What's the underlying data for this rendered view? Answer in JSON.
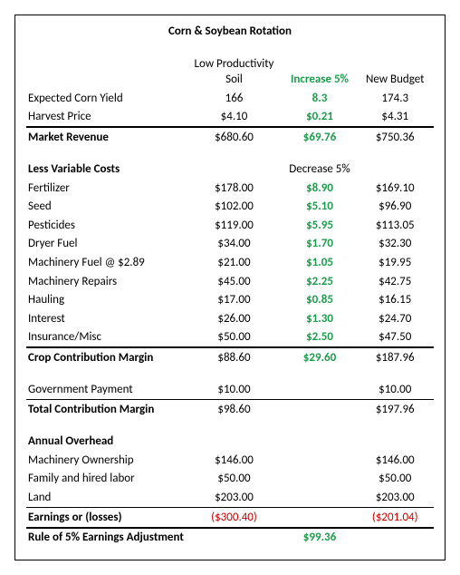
{
  "title": "Corn & Soybean Rotation",
  "headers": {
    "colA": "Low Productivity Soil",
    "colB": "Increase 5%",
    "colC": "New Budget"
  },
  "topRows": [
    {
      "label": "Expected Corn Yield",
      "a": "166",
      "b": "8.3",
      "c": "174.3"
    },
    {
      "label": "Harvest Price",
      "a": "$4.10",
      "b": "$0.21",
      "c": "$4.31"
    }
  ],
  "marketRevenue": {
    "label": "Market Revenue",
    "a": "$680.60",
    "b": "$69.76",
    "c": "$750.36"
  },
  "costsHeader": {
    "label": "Less Variable Costs",
    "b": "Decrease 5%"
  },
  "costRows": [
    {
      "label": "Fertilizer",
      "a": "$178.00",
      "b": "$8.90",
      "c": "$169.10"
    },
    {
      "label": "Seed",
      "a": "$102.00",
      "b": "$5.10",
      "c": "$96.90"
    },
    {
      "label": "Pesticides",
      "a": "$119.00",
      "b": "$5.95",
      "c": "$113.05"
    },
    {
      "label": "Dryer Fuel",
      "a": "$34.00",
      "b": "$1.70",
      "c": "$32.30"
    },
    {
      "label": "Machinery Fuel @ $2.89",
      "a": "$21.00",
      "b": "$1.05",
      "c": "$19.95"
    },
    {
      "label": "Machinery Repairs",
      "a": "$45.00",
      "b": "$2.25",
      "c": "$42.75"
    },
    {
      "label": "Hauling",
      "a": "$17.00",
      "b": "$0.85",
      "c": "$16.15"
    },
    {
      "label": "Interest",
      "a": "$26.00",
      "b": "$1.30",
      "c": "$24.70"
    },
    {
      "label": "Insurance/Misc",
      "a": "$50.00",
      "b": "$2.50",
      "c": "$47.50"
    }
  ],
  "cropContribution": {
    "label": "Crop Contribution Margin",
    "a": "$88.60",
    "b": "$29.60",
    "c": "$187.96"
  },
  "govPayment": {
    "label": "Government Payment",
    "a": "$10.00",
    "b": "",
    "c": "$10.00"
  },
  "totalContribution": {
    "label": "Total Contribution Margin",
    "a": "$98.60",
    "b": "",
    "c": "$197.96"
  },
  "overheadHeader": {
    "label": "Annual Overhead"
  },
  "overheadRows": [
    {
      "label": "Machinery Ownership",
      "a": "$146.00",
      "b": "",
      "c": "$146.00"
    },
    {
      "label": "Family and hired labor",
      "a": "$50.00",
      "b": "",
      "c": "$50.00"
    },
    {
      "label": "Land",
      "a": "$203.00",
      "b": "",
      "c": "$203.00"
    }
  ],
  "earnings": {
    "label": "Earnings or (losses)",
    "a": "($300.40)",
    "b": "",
    "c": "($201.04)"
  },
  "rule5": {
    "label": "Rule of 5% Earnings Adjustment",
    "b": "$99.36"
  },
  "colors": {
    "green": "#1b9e4b",
    "red": "#d20000",
    "text": "#000000",
    "background": "#ffffff"
  }
}
